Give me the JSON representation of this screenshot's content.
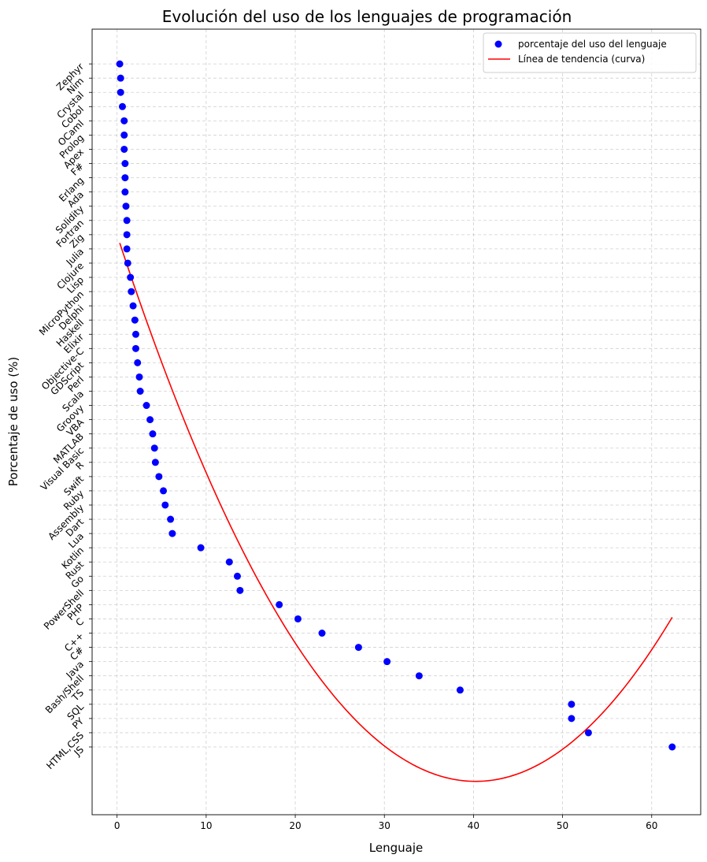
{
  "chart_data": {
    "type": "scatter",
    "title": "Evolución del uso de los lenguajes de programación",
    "xlabel": "Lenguaje",
    "ylabel": "Porcentaje de uso (%)",
    "xlim": [
      -2.8,
      65.5
    ],
    "x_ticks": [
      0,
      10,
      20,
      30,
      40,
      50,
      60
    ],
    "grid": true,
    "legend_position": "top-right",
    "categories": [
      "JS",
      "HTML,CSS",
      "PY",
      "SQL",
      "TS",
      "Bash/Shell",
      "Java",
      "C#",
      "C++",
      "C",
      "PHP",
      "PowerShell",
      "Go",
      "Rust",
      "Kotlin",
      "Lua",
      "Dart",
      "Assembly",
      "Ruby",
      "Swift",
      "R",
      "Visual Basic",
      "MATLAB",
      "VBA",
      "Groovy",
      "Scala",
      "Perl",
      "GDScript",
      "Objective-C",
      "Elixir",
      "Haskell",
      "Delphi",
      "MicroPython",
      "Lisp",
      "Clojure",
      "Julia",
      "Zig",
      "Fortran",
      "Solidity",
      "Ada",
      "Erlang",
      "F#",
      "Apex",
      "Prolog",
      "OCaml",
      "Cobol",
      "Crystal",
      "Nim",
      "Zephyr"
    ],
    "series": [
      {
        "name": "porcentaje del uso del lenguaje",
        "type": "scatter",
        "color": "#0000ff",
        "values": [
          62.3,
          52.9,
          51.0,
          51.0,
          38.5,
          33.9,
          30.3,
          27.1,
          23.0,
          20.3,
          18.2,
          13.8,
          13.5,
          12.6,
          9.4,
          6.2,
          6.0,
          5.4,
          5.2,
          4.7,
          4.3,
          4.2,
          4.0,
          3.7,
          3.3,
          2.6,
          2.5,
          2.3,
          2.1,
          2.1,
          2.0,
          1.8,
          1.6,
          1.5,
          1.2,
          1.1,
          1.1,
          1.1,
          1.0,
          0.9,
          0.9,
          0.9,
          0.8,
          0.8,
          0.8,
          0.6,
          0.4,
          0.4,
          0.3
        ]
      },
      {
        "name": "Línea de tendencia (curva)",
        "type": "line",
        "color": "#ff0000"
      }
    ]
  }
}
